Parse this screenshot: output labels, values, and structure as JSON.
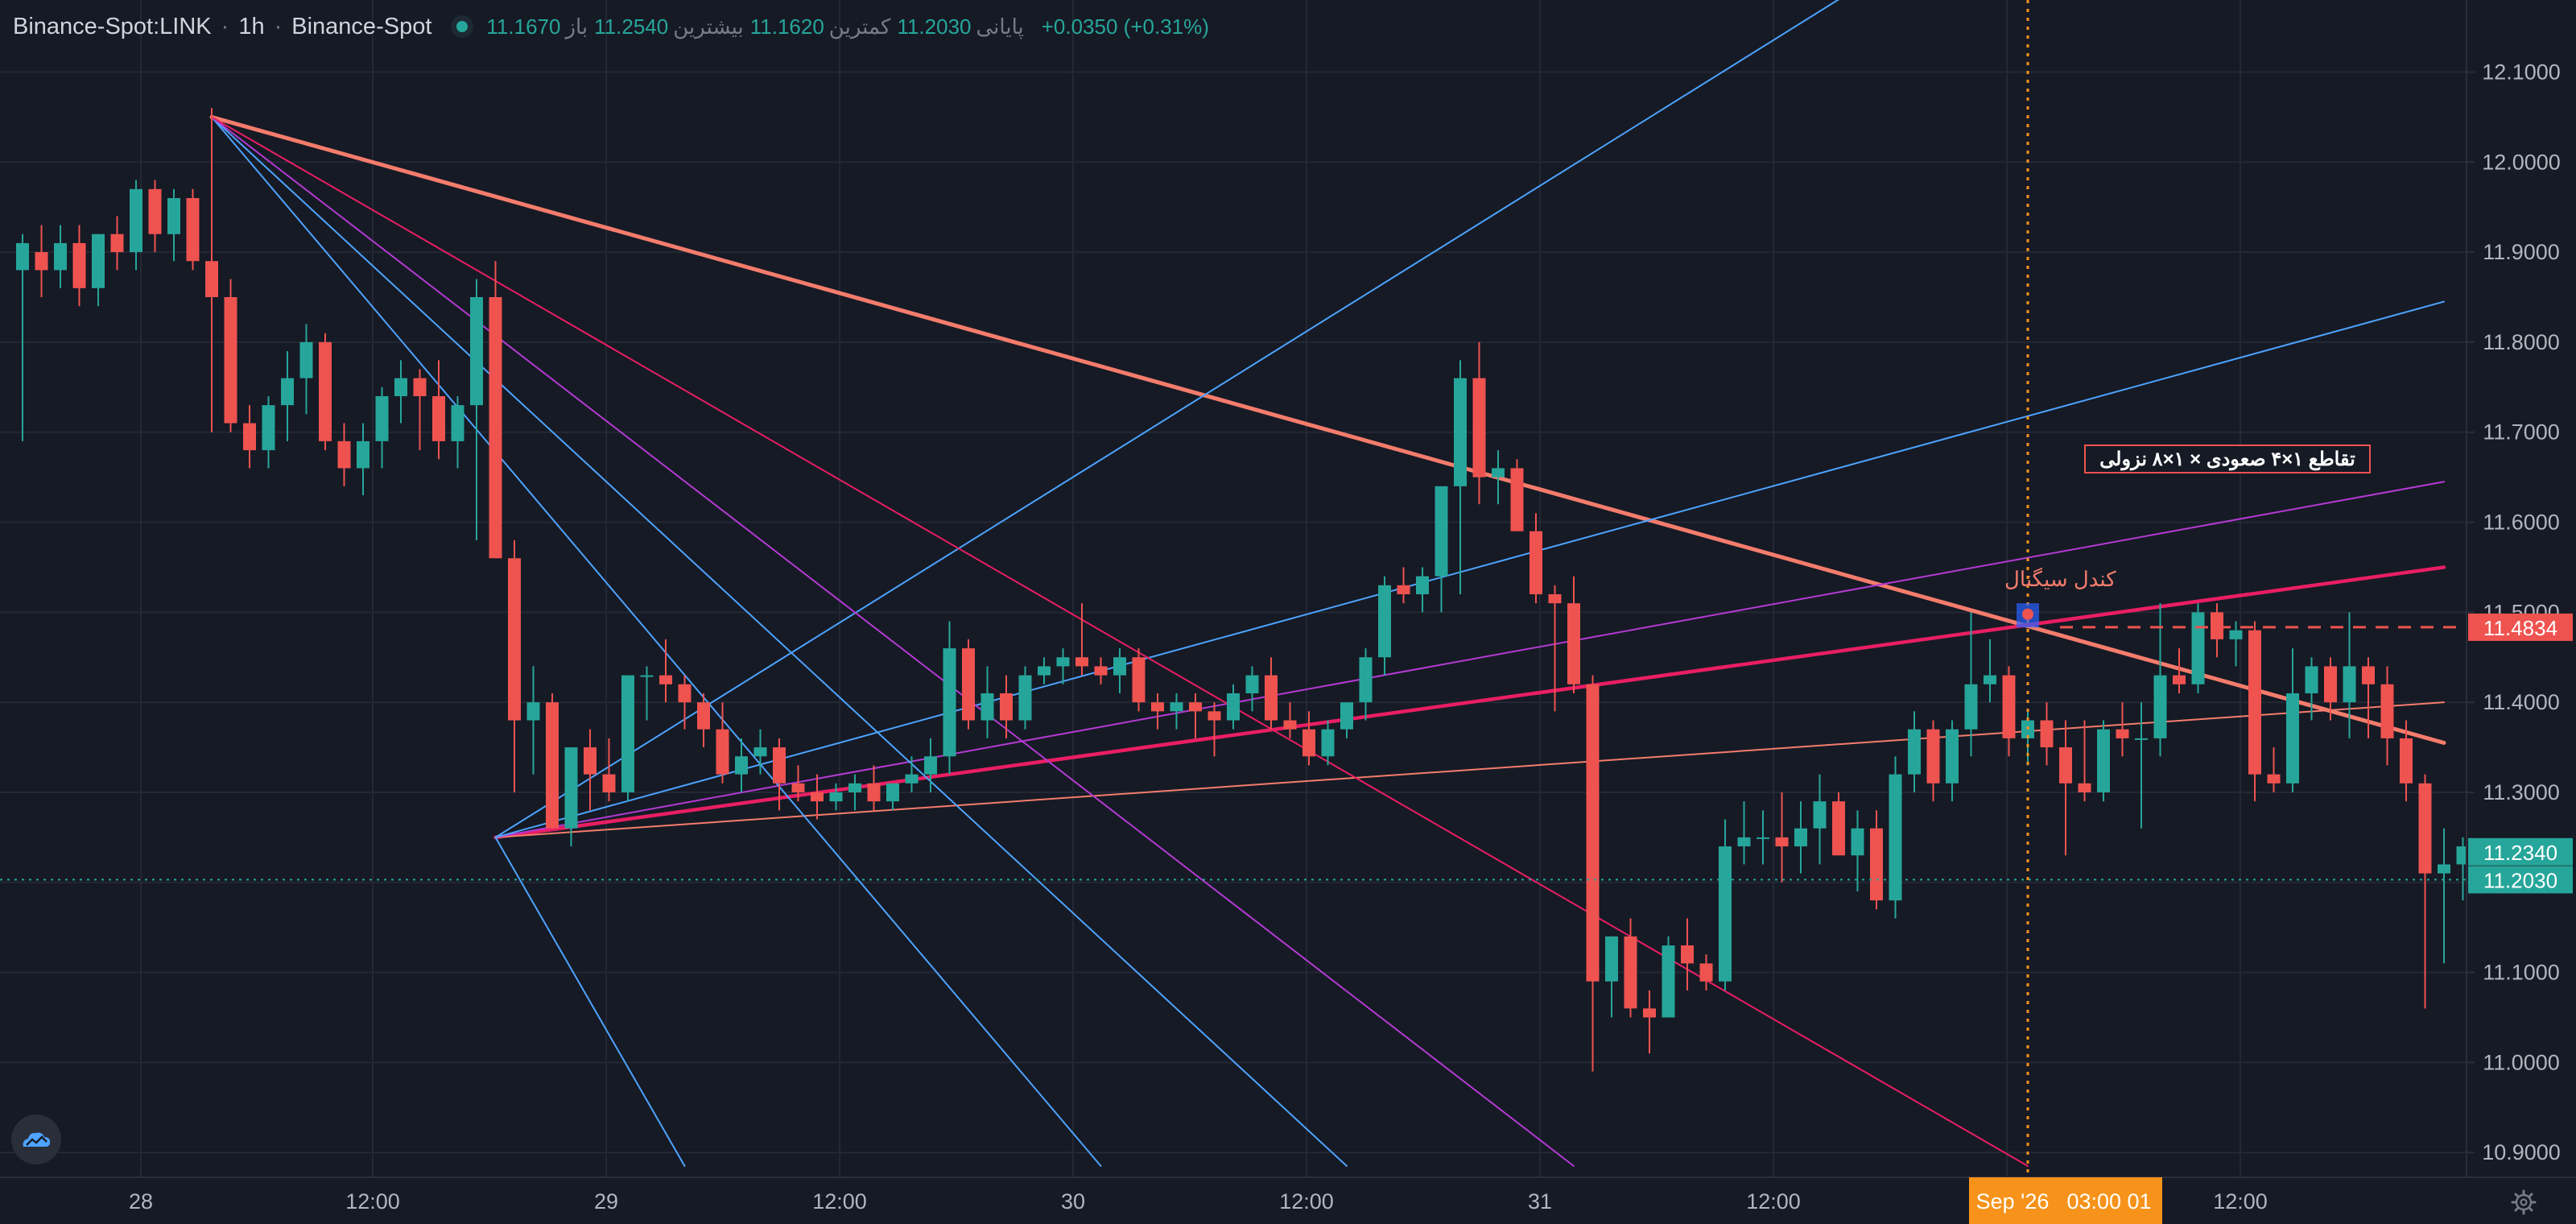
{
  "header": {
    "symbol": "Binance-Spot:LINK",
    "interval": "1h",
    "exchange": "Binance-Spot",
    "open_label": "باز",
    "open": "11.1670",
    "high_label": "بیشترین",
    "high": "11.2540",
    "low_label": "کمترین",
    "low": "11.1620",
    "close_label": "پایانی",
    "close": "11.2030",
    "change": "+0.0350 (+0.31%)"
  },
  "colors": {
    "background": "#161a25",
    "up": "#26a69a",
    "down": "#ef5350",
    "fan_blue": "#4da3ff",
    "fan_purple": "#b43ad3",
    "fan_pink": "#e91e63",
    "fan_salmon": "#f47c6c",
    "crosshair": "#f7931a"
  },
  "chart_data": {
    "type": "candlestick",
    "ylim": [
      10.885,
      12.18
    ],
    "y_ticks": [
      "12.1000",
      "12.0000",
      "11.9000",
      "11.8000",
      "11.7000",
      "11.6000",
      "11.5000",
      "11.4000",
      "11.3000",
      "11.2000",
      "11.1000",
      "11.0000",
      "10.9000"
    ],
    "x_ticks": [
      "28",
      "12:00",
      "29",
      "12:00",
      "30",
      "12:00",
      "31",
      "12:00",
      "Sep '26",
      "03:00 01",
      "12:00"
    ],
    "current_price": "11.2030",
    "current_price_dotted": 11.203,
    "price_labels": {
      "line_level": "11.4834",
      "high_level": "11.2340",
      "last_level": "11.2030"
    },
    "annotations": {
      "signal_box": "تقاطع ۱×۴ صعودی × ۱×۸ نزولی",
      "signal_candle": "کندل سیگنال"
    },
    "candles": [
      [
        11.88,
        11.92,
        11.69,
        11.91
      ],
      [
        11.9,
        11.93,
        11.85,
        11.88
      ],
      [
        11.88,
        11.93,
        11.86,
        11.91
      ],
      [
        11.91,
        11.93,
        11.84,
        11.86
      ],
      [
        11.86,
        11.92,
        11.84,
        11.92
      ],
      [
        11.92,
        11.94,
        11.88,
        11.9
      ],
      [
        11.9,
        11.98,
        11.88,
        11.97
      ],
      [
        11.97,
        11.98,
        11.9,
        11.92
      ],
      [
        11.92,
        11.97,
        11.89,
        11.96
      ],
      [
        11.96,
        11.97,
        11.88,
        11.89
      ],
      [
        11.89,
        12.06,
        11.7,
        11.85
      ],
      [
        11.85,
        11.87,
        11.7,
        11.71
      ],
      [
        11.71,
        11.73,
        11.66,
        11.68
      ],
      [
        11.68,
        11.74,
        11.66,
        11.73
      ],
      [
        11.73,
        11.79,
        11.69,
        11.76
      ],
      [
        11.76,
        11.82,
        11.72,
        11.8
      ],
      [
        11.8,
        11.81,
        11.68,
        11.69
      ],
      [
        11.69,
        11.71,
        11.64,
        11.66
      ],
      [
        11.66,
        11.71,
        11.63,
        11.69
      ],
      [
        11.69,
        11.75,
        11.66,
        11.74
      ],
      [
        11.74,
        11.78,
        11.71,
        11.76
      ],
      [
        11.76,
        11.77,
        11.68,
        11.74
      ],
      [
        11.74,
        11.78,
        11.67,
        11.69
      ],
      [
        11.69,
        11.74,
        11.66,
        11.73
      ],
      [
        11.73,
        11.87,
        11.58,
        11.85
      ],
      [
        11.85,
        11.89,
        11.56,
        11.56
      ],
      [
        11.56,
        11.58,
        11.3,
        11.38
      ],
      [
        11.38,
        11.44,
        11.32,
        11.4
      ],
      [
        11.4,
        11.41,
        11.26,
        11.26
      ],
      [
        11.26,
        11.34,
        11.24,
        11.35
      ],
      [
        11.35,
        11.37,
        11.28,
        11.32
      ],
      [
        11.32,
        11.36,
        11.29,
        11.3
      ],
      [
        11.3,
        11.43,
        11.29,
        11.43
      ],
      [
        11.43,
        11.44,
        11.38,
        11.43
      ],
      [
        11.43,
        11.47,
        11.4,
        11.42
      ],
      [
        11.42,
        11.43,
        11.37,
        11.4
      ],
      [
        11.4,
        11.41,
        11.35,
        11.37
      ],
      [
        11.37,
        11.4,
        11.31,
        11.32
      ],
      [
        11.32,
        11.36,
        11.3,
        11.34
      ],
      [
        11.34,
        11.37,
        11.32,
        11.35
      ],
      [
        11.35,
        11.36,
        11.28,
        11.31
      ],
      [
        11.31,
        11.33,
        11.29,
        11.3
      ],
      [
        11.3,
        11.32,
        11.27,
        11.29
      ],
      [
        11.29,
        11.31,
        11.28,
        11.3
      ],
      [
        11.3,
        11.32,
        11.28,
        11.31
      ],
      [
        11.31,
        11.33,
        11.28,
        11.29
      ],
      [
        11.29,
        11.31,
        11.28,
        11.31
      ],
      [
        11.31,
        11.34,
        11.3,
        11.32
      ],
      [
        11.32,
        11.36,
        11.3,
        11.34
      ],
      [
        11.34,
        11.49,
        11.32,
        11.46
      ],
      [
        11.46,
        11.47,
        11.37,
        11.38
      ],
      [
        11.38,
        11.44,
        11.36,
        11.41
      ],
      [
        11.41,
        11.43,
        11.36,
        11.38
      ],
      [
        11.38,
        11.44,
        11.37,
        11.43
      ],
      [
        11.43,
        11.45,
        11.42,
        11.44
      ],
      [
        11.44,
        11.46,
        11.42,
        11.45
      ],
      [
        11.45,
        11.51,
        11.43,
        11.44
      ],
      [
        11.44,
        11.45,
        11.42,
        11.43
      ],
      [
        11.43,
        11.46,
        11.41,
        11.45
      ],
      [
        11.45,
        11.46,
        11.39,
        11.4
      ],
      [
        11.4,
        11.41,
        11.37,
        11.39
      ],
      [
        11.39,
        11.41,
        11.37,
        11.4
      ],
      [
        11.4,
        11.41,
        11.36,
        11.39
      ],
      [
        11.39,
        11.4,
        11.34,
        11.38
      ],
      [
        11.38,
        11.42,
        11.37,
        11.41
      ],
      [
        11.41,
        11.44,
        11.39,
        11.43
      ],
      [
        11.43,
        11.45,
        11.37,
        11.38
      ],
      [
        11.38,
        11.4,
        11.36,
        11.37
      ],
      [
        11.37,
        11.39,
        11.33,
        11.34
      ],
      [
        11.34,
        11.38,
        11.33,
        11.37
      ],
      [
        11.37,
        11.4,
        11.36,
        11.4
      ],
      [
        11.4,
        11.46,
        11.38,
        11.45
      ],
      [
        11.45,
        11.54,
        11.43,
        11.53
      ],
      [
        11.53,
        11.55,
        11.51,
        11.52
      ],
      [
        11.52,
        11.55,
        11.5,
        11.54
      ],
      [
        11.54,
        11.63,
        11.5,
        11.64
      ],
      [
        11.64,
        11.78,
        11.52,
        11.76
      ],
      [
        11.76,
        11.8,
        11.62,
        11.65
      ],
      [
        11.65,
        11.68,
        11.62,
        11.66
      ],
      [
        11.66,
        11.67,
        11.59,
        11.59
      ],
      [
        11.59,
        11.61,
        11.51,
        11.52
      ],
      [
        11.52,
        11.53,
        11.39,
        11.51
      ],
      [
        11.51,
        11.54,
        11.41,
        11.42
      ],
      [
        11.42,
        11.43,
        10.99,
        11.09
      ],
      [
        11.09,
        11.14,
        11.05,
        11.14
      ],
      [
        11.14,
        11.16,
        11.05,
        11.06
      ],
      [
        11.06,
        11.08,
        11.01,
        11.05
      ],
      [
        11.05,
        11.14,
        11.05,
        11.13
      ],
      [
        11.13,
        11.16,
        11.08,
        11.11
      ],
      [
        11.11,
        11.12,
        11.08,
        11.09
      ],
      [
        11.09,
        11.27,
        11.08,
        11.24
      ],
      [
        11.24,
        11.29,
        11.22,
        11.25
      ],
      [
        11.25,
        11.28,
        11.22,
        11.25
      ],
      [
        11.25,
        11.3,
        11.2,
        11.24
      ],
      [
        11.24,
        11.29,
        11.21,
        11.26
      ],
      [
        11.26,
        11.32,
        11.22,
        11.29
      ],
      [
        11.29,
        11.3,
        11.23,
        11.23
      ],
      [
        11.23,
        11.28,
        11.19,
        11.26
      ],
      [
        11.26,
        11.28,
        11.17,
        11.18
      ],
      [
        11.18,
        11.34,
        11.16,
        11.32
      ],
      [
        11.32,
        11.39,
        11.3,
        11.37
      ],
      [
        11.37,
        11.38,
        11.29,
        11.31
      ],
      [
        11.31,
        11.38,
        11.29,
        11.37
      ],
      [
        11.37,
        11.5,
        11.34,
        11.42
      ],
      [
        11.42,
        11.47,
        11.4,
        11.43
      ],
      [
        11.43,
        11.44,
        11.34,
        11.36
      ],
      [
        11.36,
        11.39,
        11.33,
        11.38
      ],
      [
        11.38,
        11.4,
        11.33,
        11.35
      ],
      [
        11.35,
        11.38,
        11.23,
        11.31
      ],
      [
        11.31,
        11.38,
        11.29,
        11.3
      ],
      [
        11.3,
        11.38,
        11.29,
        11.37
      ],
      [
        11.37,
        11.4,
        11.34,
        11.36
      ],
      [
        11.36,
        11.4,
        11.26,
        11.36
      ],
      [
        11.36,
        11.51,
        11.34,
        11.43
      ],
      [
        11.43,
        11.46,
        11.41,
        11.42
      ],
      [
        11.42,
        11.51,
        11.41,
        11.5
      ],
      [
        11.5,
        11.51,
        11.45,
        11.47
      ],
      [
        11.47,
        11.49,
        11.44,
        11.48
      ],
      [
        11.48,
        11.49,
        11.29,
        11.32
      ],
      [
        11.32,
        11.35,
        11.3,
        11.31
      ],
      [
        11.31,
        11.46,
        11.3,
        11.41
      ],
      [
        11.41,
        11.45,
        11.38,
        11.44
      ],
      [
        11.44,
        11.45,
        11.38,
        11.4
      ],
      [
        11.4,
        11.5,
        11.36,
        11.44
      ],
      [
        11.44,
        11.45,
        11.36,
        11.42
      ],
      [
        11.42,
        11.44,
        11.33,
        11.36
      ],
      [
        11.36,
        11.38,
        11.29,
        11.31
      ],
      [
        11.31,
        11.32,
        11.06,
        11.21
      ],
      [
        11.21,
        11.26,
        11.11,
        11.22
      ],
      [
        11.22,
        11.25,
        11.18,
        11.24
      ],
      [
        11.24,
        11.25,
        11.14,
        11.16
      ],
      [
        11.16,
        11.2,
        11.1,
        11.17
      ],
      [
        11.17,
        11.25,
        11.16,
        11.2
      ]
    ],
    "fan_lines": [
      {
        "color": "#f47c6c",
        "width": 5,
        "from": [
          10,
          12.05
        ],
        "to": [
          128,
          11.355
        ]
      },
      {
        "color": "#e91e63",
        "width": 4.5,
        "from": [
          25,
          11.25
        ],
        "to": [
          128,
          11.55
        ]
      },
      {
        "color": "#f47c6c",
        "width": 2,
        "from": [
          25,
          11.25
        ],
        "to": [
          128,
          11.4
        ]
      },
      {
        "color": "#b43ad3",
        "width": 2,
        "from": [
          25,
          11.25
        ],
        "to": [
          128,
          11.645
        ]
      },
      {
        "color": "#4da3ff",
        "width": 2,
        "from": [
          25,
          11.25
        ],
        "to": [
          128,
          11.845
        ]
      },
      {
        "color": "#4da3ff",
        "width": 2,
        "from": [
          25,
          11.25
        ],
        "to": [
          128,
          12.6
        ]
      },
      {
        "color": "#4da3ff",
        "width": 2,
        "from": [
          25,
          11.25
        ],
        "to": [
          35,
          10.885
        ]
      },
      {
        "color": "#4da3ff",
        "width": 2,
        "from": [
          10,
          12.05
        ],
        "to": [
          70,
          10.885
        ]
      },
      {
        "color": "#4da3ff",
        "width": 2,
        "from": [
          10,
          12.05
        ],
        "to": [
          57,
          10.885
        ]
      },
      {
        "color": "#b43ad3",
        "width": 2,
        "from": [
          10,
          12.05
        ],
        "to": [
          82,
          10.885
        ]
      },
      {
        "color": "#e91e63",
        "width": 2,
        "from": [
          10,
          12.05
        ],
        "to": [
          106,
          10.885
        ]
      }
    ],
    "signal_candle_index": 106
  }
}
